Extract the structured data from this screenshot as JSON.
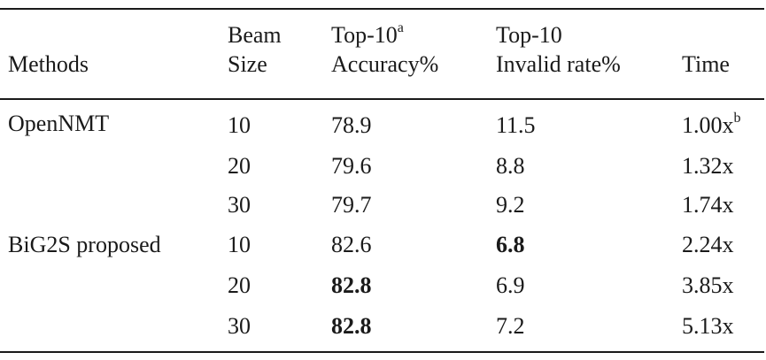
{
  "table": {
    "header": {
      "methods": "Methods",
      "beam_line1": "Beam",
      "beam_line2": "Size",
      "acc_line1": "Top-10",
      "acc_sup": "a",
      "acc_line2": "Accuracy%",
      "inv_line1": "Top-10",
      "inv_line2": "Invalid rate%",
      "time": "Time"
    },
    "rows": [
      {
        "method": "OpenNMT",
        "beam": "10",
        "acc": "78.9",
        "inv": "11.5",
        "time": "1.00x",
        "time_sup": "b"
      },
      {
        "method": "",
        "beam": "20",
        "acc": "79.6",
        "inv": "8.8",
        "time": "1.32x"
      },
      {
        "method": "",
        "beam": "30",
        "acc": "79.7",
        "inv": "9.2",
        "time": "1.74x"
      },
      {
        "method": "BiG2S proposed",
        "beam": "10",
        "acc": "82.6",
        "inv": "6.8",
        "time": "2.24x"
      },
      {
        "method": "",
        "beam": "20",
        "acc": "82.8",
        "inv": "6.9",
        "time": "3.85x"
      },
      {
        "method": "",
        "beam": "30",
        "acc": "82.8",
        "inv": "7.2",
        "time": "5.13x"
      }
    ]
  }
}
